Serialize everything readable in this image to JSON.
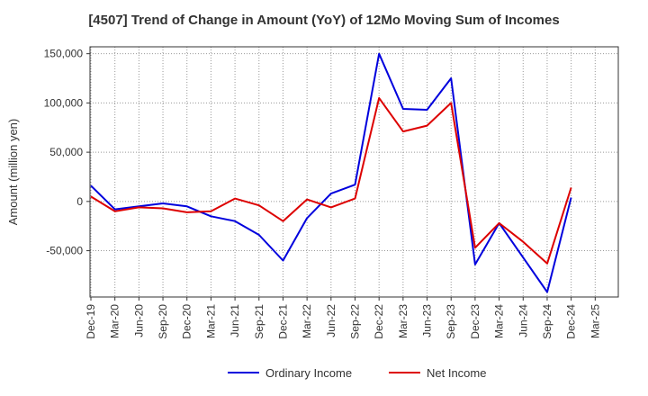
{
  "title": "[4507]  Trend of Change in Amount (YoY) of 12Mo Moving Sum of Incomes",
  "chart_data": {
    "type": "line",
    "title": "[4507]  Trend of Change in Amount (YoY) of 12Mo Moving Sum of Incomes",
    "xlabel": "",
    "ylabel": "Amount (million yen)",
    "categories": [
      "Dec-19",
      "Mar-20",
      "Jun-20",
      "Sep-20",
      "Dec-20",
      "Mar-21",
      "Jun-21",
      "Sep-21",
      "Dec-21",
      "Mar-22",
      "Jun-22",
      "Sep-22",
      "Dec-22",
      "Mar-23",
      "Jun-23",
      "Sep-23",
      "Dec-23",
      "Mar-24",
      "Jun-24",
      "Sep-24",
      "Dec-24",
      "Mar-25"
    ],
    "ylim": [
      -97000,
      157000
    ],
    "yticks": [
      -50000,
      0,
      50000,
      100000,
      150000
    ],
    "ytick_labels": [
      "-50,000",
      "0",
      "50,000",
      "100,000",
      "150,000"
    ],
    "grid": true,
    "legend_position": "bottom",
    "series": [
      {
        "name": "Ordinary Income",
        "color": "#0000dd",
        "values": [
          16000,
          -8000,
          -5000,
          -2000,
          -5000,
          -15000,
          -20000,
          -34000,
          -60000,
          -17000,
          8000,
          17000,
          150000,
          94000,
          93000,
          125000,
          -64000,
          -22000,
          -57000,
          -92000,
          4000,
          null
        ]
      },
      {
        "name": "Net Income",
        "color": "#dd0000",
        "values": [
          5000,
          -10000,
          -6000,
          -7000,
          -11000,
          -10000,
          3000,
          -4000,
          -20000,
          2000,
          -6000,
          3000,
          105000,
          71000,
          77000,
          100000,
          -47000,
          -22000,
          -41000,
          -63000,
          14000,
          null
        ]
      }
    ]
  }
}
